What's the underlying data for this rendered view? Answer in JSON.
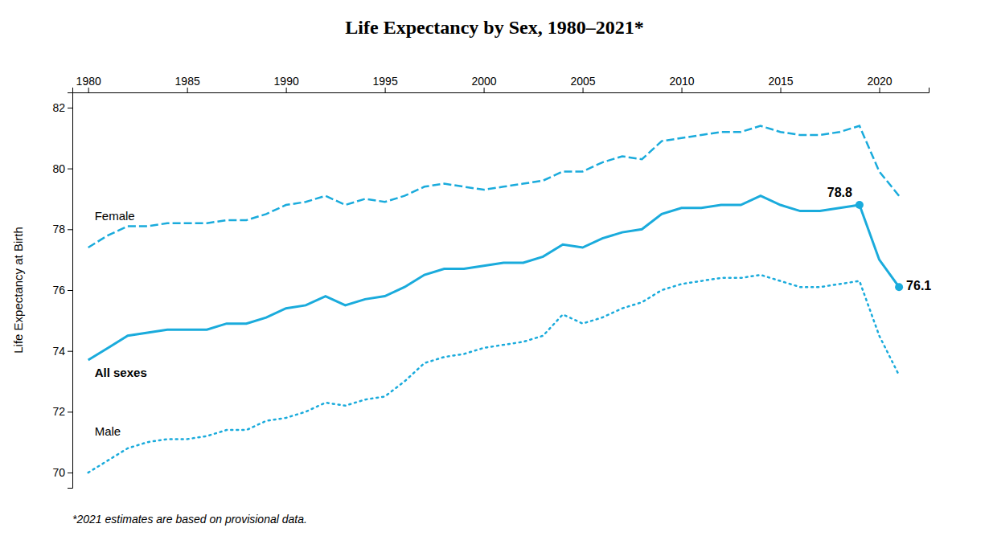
{
  "chart_data": {
    "type": "line",
    "title": "Life Expectancy by Sex, 1980–2021*",
    "footnote": "*2021 estimates are based on provisional data.",
    "ylabel": "Life Expectancy at Birth",
    "xlim": [
      1979.2,
      2022.5
    ],
    "ylim": [
      69.5,
      82.5
    ],
    "xticks": [
      1980,
      1985,
      1990,
      1995,
      2000,
      2005,
      2010,
      2015,
      2020
    ],
    "yticks": [
      70,
      72,
      74,
      76,
      78,
      80,
      82
    ],
    "grid": false,
    "x": [
      1980,
      1981,
      1982,
      1983,
      1984,
      1985,
      1986,
      1987,
      1988,
      1989,
      1990,
      1991,
      1992,
      1993,
      1994,
      1995,
      1996,
      1997,
      1998,
      1999,
      2000,
      2001,
      2002,
      2003,
      2004,
      2005,
      2006,
      2007,
      2008,
      2009,
      2010,
      2011,
      2012,
      2013,
      2014,
      2015,
      2016,
      2017,
      2018,
      2019,
      2020,
      2021
    ],
    "series": [
      {
        "name": "Female",
        "color": "#1aabdc",
        "line_style": "dashed",
        "values": [
          77.4,
          77.8,
          78.1,
          78.1,
          78.2,
          78.2,
          78.2,
          78.3,
          78.3,
          78.5,
          78.8,
          78.9,
          79.1,
          78.8,
          79.0,
          78.9,
          79.1,
          79.4,
          79.5,
          79.4,
          79.3,
          79.4,
          79.5,
          79.6,
          79.9,
          79.9,
          80.2,
          80.4,
          80.3,
          80.9,
          81.0,
          81.1,
          81.2,
          81.2,
          81.4,
          81.2,
          81.1,
          81.1,
          81.2,
          81.4,
          79.9,
          79.1
        ]
      },
      {
        "name": "All sexes",
        "color": "#1aabdc",
        "line_style": "solid",
        "values": [
          73.7,
          74.1,
          74.5,
          74.6,
          74.7,
          74.7,
          74.7,
          74.9,
          74.9,
          75.1,
          75.4,
          75.5,
          75.8,
          75.5,
          75.7,
          75.8,
          76.1,
          76.5,
          76.7,
          76.7,
          76.8,
          76.9,
          76.9,
          77.1,
          77.5,
          77.4,
          77.7,
          77.9,
          78.0,
          78.5,
          78.7,
          78.7,
          78.8,
          78.8,
          79.1,
          78.8,
          78.6,
          78.6,
          78.7,
          78.8,
          77.0,
          76.1
        ]
      },
      {
        "name": "Male",
        "color": "#1aabdc",
        "line_style": "dotted",
        "values": [
          70.0,
          70.4,
          70.8,
          71.0,
          71.1,
          71.1,
          71.2,
          71.4,
          71.4,
          71.7,
          71.8,
          72.0,
          72.3,
          72.2,
          72.4,
          72.5,
          73.0,
          73.6,
          73.8,
          73.9,
          74.1,
          74.2,
          74.3,
          74.5,
          75.2,
          74.9,
          75.1,
          75.4,
          75.6,
          76.0,
          76.2,
          76.3,
          76.4,
          76.4,
          76.5,
          76.3,
          76.1,
          76.1,
          76.2,
          76.3,
          74.5,
          73.2
        ]
      }
    ],
    "annotations": [
      {
        "text": "78.8",
        "x": 2019,
        "y": 78.8
      },
      {
        "text": "76.1",
        "x": 2021,
        "y": 76.1
      }
    ]
  }
}
